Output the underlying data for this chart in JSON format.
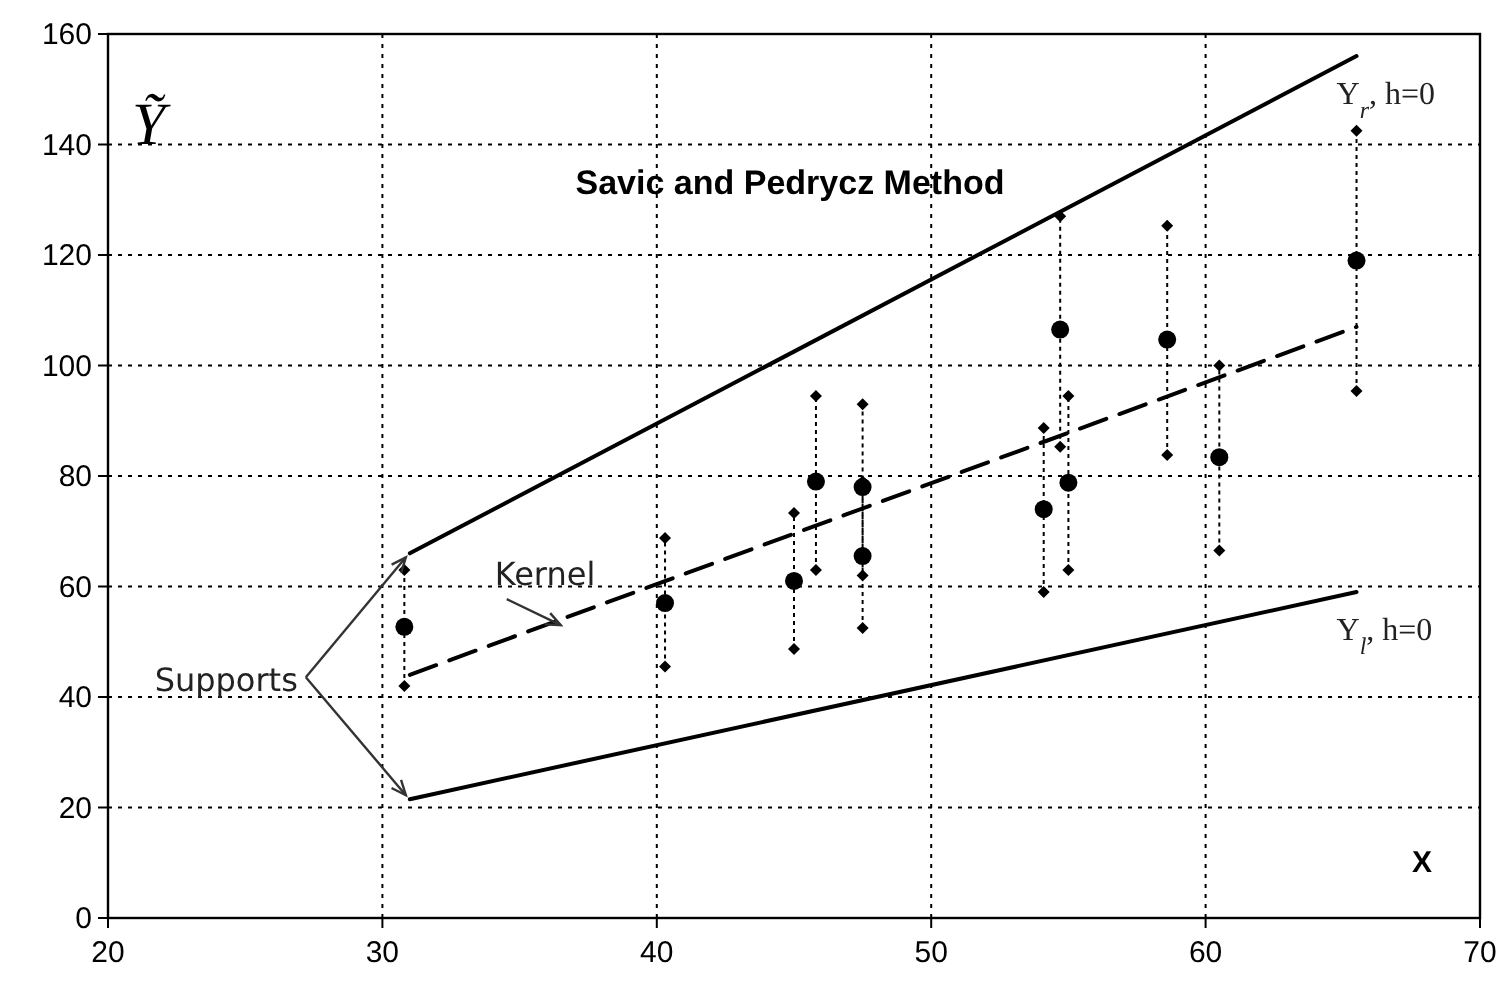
{
  "chart_data": {
    "type": "scatter",
    "title": "Savic and Pedrycz Method",
    "xlabel": "X",
    "ylabel": "Ỹ",
    "xlim": [
      20,
      70
    ],
    "xticks": [
      20,
      30,
      40,
      50,
      60,
      70
    ],
    "ylim": [
      0,
      160
    ],
    "yticks": [
      0,
      20,
      40,
      60,
      80,
      100,
      120,
      140,
      160
    ],
    "grid": true,
    "annotations": [
      {
        "text": "Kernel",
        "x": 36.5,
        "y": 53
      },
      {
        "text": "Supports",
        "x": 31,
        "y": 21.5
      }
    ],
    "series": [
      {
        "color": "#000000",
        "marker": "circle",
        "x": [
          30.8,
          40.3,
          45.0,
          45.8,
          47.5,
          47.5,
          54.1,
          54.7,
          55.0,
          58.6,
          60.5,
          65.5
        ],
        "values": [
          52.7,
          57,
          61,
          79,
          78,
          65.5,
          74,
          106.5,
          78.8,
          104.7,
          83.4,
          119
        ],
        "errors": [
          [
            42,
            63
          ],
          [
            45.5,
            68.8
          ],
          [
            48.7,
            73.3
          ],
          [
            63,
            94.5
          ],
          [
            62,
            93
          ],
          [
            52.5,
            79
          ],
          [
            59,
            88.7
          ],
          [
            85.3,
            127
          ],
          [
            63,
            94.5
          ],
          [
            83.8,
            125.3
          ],
          [
            66.5,
            100
          ],
          [
            95.4,
            142.5
          ]
        ]
      },
      {
        "color": "#000000",
        "marker": "diamond",
        "x": [
          30.8,
          40.3,
          45.0,
          45.8,
          47.5,
          47.5,
          54.1,
          54.7,
          55.0,
          58.6,
          60.5,
          65.5
        ],
        "values": [
          63,
          68.8,
          73.3,
          94.5,
          93,
          79,
          88.7,
          127,
          94.5,
          125.3,
          100,
          142.5
        ]
      },
      {
        "color": "#000000",
        "marker": "diamond",
        "x": [
          30.8,
          40.3,
          45.0,
          45.8,
          47.5,
          47.5,
          54.1,
          54.7,
          55.0,
          58.6,
          60.5,
          65.5
        ],
        "values": [
          42,
          45.5,
          48.7,
          63,
          62,
          52.5,
          59,
          85.3,
          63,
          83.8,
          66.5,
          95.4
        ]
      },
      {
        "type": "line",
        "name": "Y$_{r}$,  h=0",
        "color": "#000000",
        "line_style": "solid",
        "x": [
          31,
          65.5
        ],
        "values": [
          66,
          156
        ]
      },
      {
        "type": "line",
        "color": "#000000",
        "line_style": "dashed",
        "x": [
          31,
          65.5
        ],
        "values": [
          44,
          107
        ]
      },
      {
        "type": "line",
        "name": "Y$_{l}$,  h=0",
        "color": "#000000",
        "line_style": "solid",
        "x": [
          31,
          65.5
        ],
        "values": [
          21.5,
          59
        ]
      }
    ]
  }
}
